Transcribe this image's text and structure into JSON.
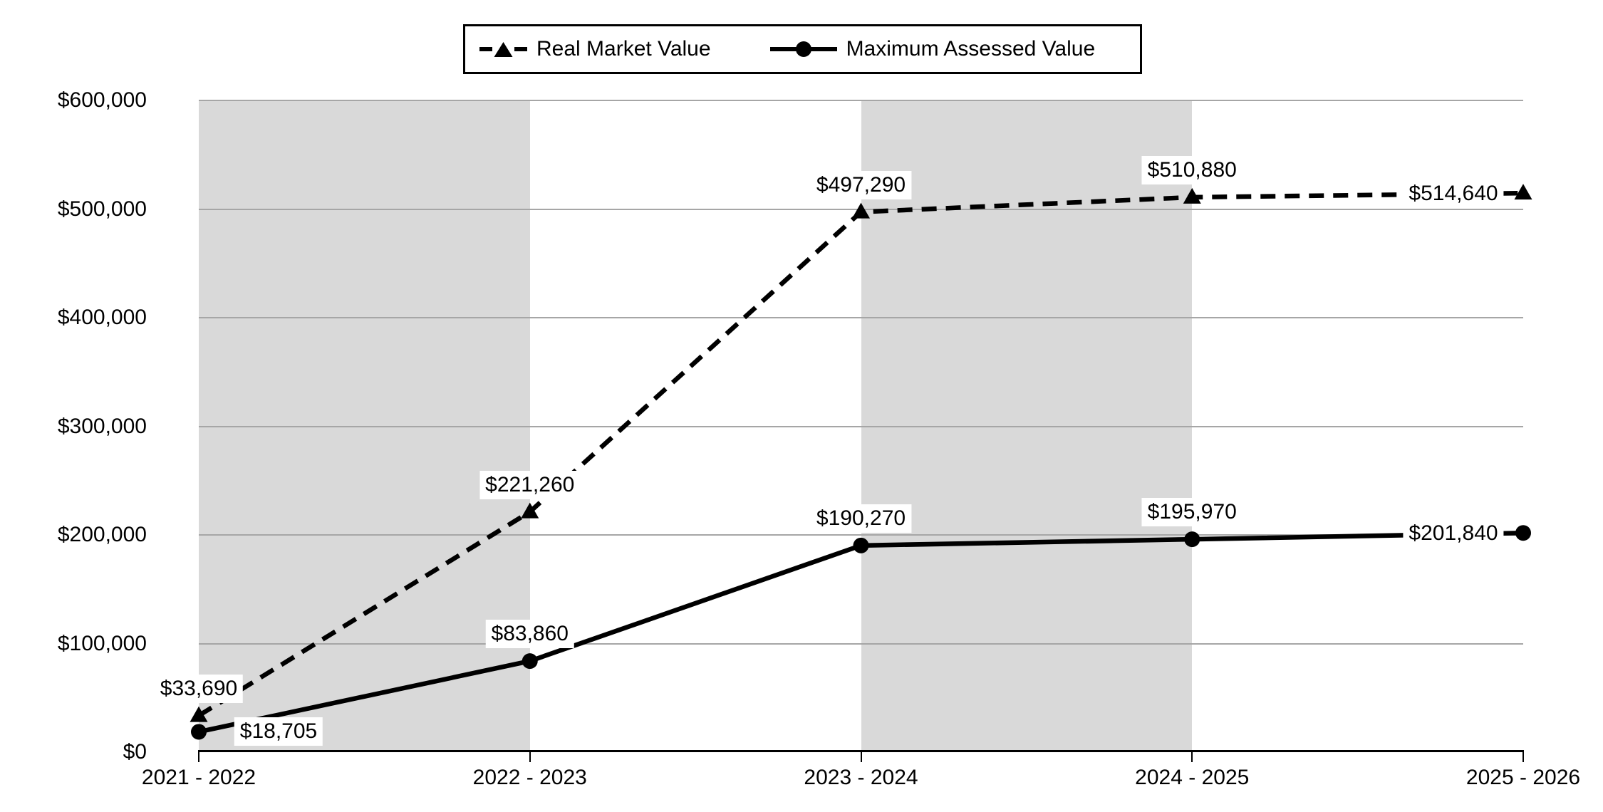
{
  "chart_data": {
    "type": "line",
    "title": "",
    "xlabel": "",
    "ylabel": "",
    "categories": [
      "2021 - 2022",
      "2022 - 2023",
      "2023 - 2024",
      "2024 - 2025",
      "2025 - 2026"
    ],
    "series": [
      {
        "name": "Real Market Value",
        "values": [
          33690,
          221260,
          497290,
          510880,
          514640
        ],
        "data_labels": [
          "$33,690",
          "$221,260",
          "$497,290",
          "$510,880",
          "$514,640"
        ],
        "line_style": "dashed",
        "marker": "triangle",
        "label_placements": [
          "above",
          "above",
          "above",
          "above",
          "left"
        ]
      },
      {
        "name": "Maximum Assessed Value",
        "values": [
          18705,
          83860,
          190270,
          195970,
          201840
        ],
        "data_labels": [
          "$18,705",
          "$83,860",
          "$190,270",
          "$195,970",
          "$201,840"
        ],
        "line_style": "solid",
        "marker": "circle",
        "label_placements": [
          "right",
          "above",
          "above",
          "above",
          "left"
        ]
      }
    ],
    "ylim": [
      0,
      600000
    ],
    "ytick_step": 100000,
    "ytick_labels": [
      "$0",
      "$100,000",
      "$200,000",
      "$300,000",
      "$400,000",
      "$500,000",
      "$600,000"
    ],
    "grid": true,
    "legend_position": "top-center",
    "shaded_bands": [
      [
        0,
        1
      ],
      [
        2,
        3
      ]
    ],
    "colors": {
      "series": "#000000",
      "band": "#d9d9d9",
      "gridline": "#a6a6a6",
      "label_bg": "#ffffff",
      "background": "#ffffff"
    }
  }
}
